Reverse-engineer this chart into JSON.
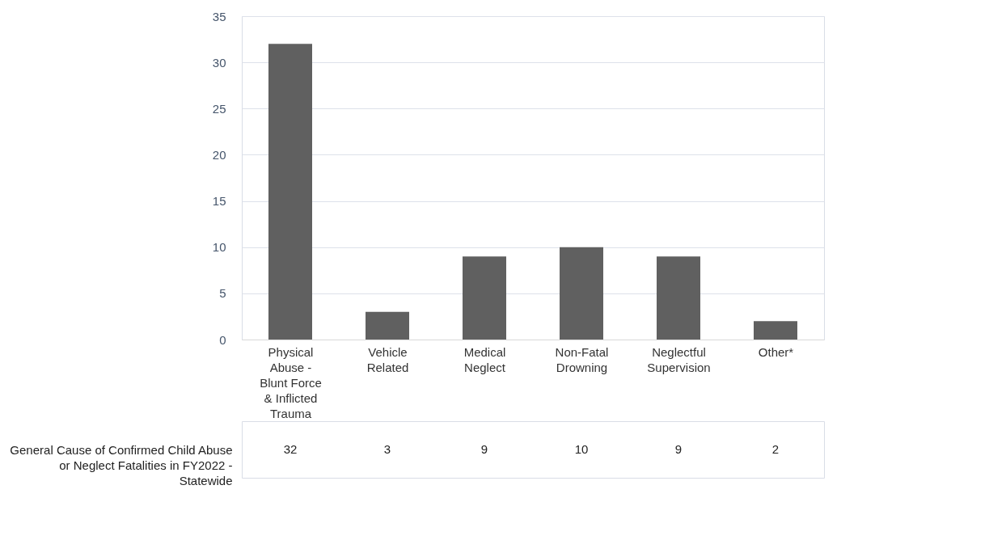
{
  "chart_data": {
    "type": "bar",
    "categories": [
      "Physical Abuse - Blunt Force & Inflicted Trauma",
      "Vehicle Related",
      "Medical Neglect",
      "Non-Fatal Drowning",
      "Neglectful Supervision",
      "Other*"
    ],
    "series": [
      {
        "name": "General Cause of Confirmed Child Abuse or Neglect Fatalities in FY2022 - Statewide",
        "color": "#606060",
        "values": [
          32,
          3,
          9,
          10,
          9,
          2
        ]
      }
    ],
    "ylim": [
      0,
      35
    ],
    "yticks": [
      0,
      5,
      10,
      15,
      20,
      25,
      30,
      35
    ],
    "grid": "y",
    "data_labels": true
  }
}
